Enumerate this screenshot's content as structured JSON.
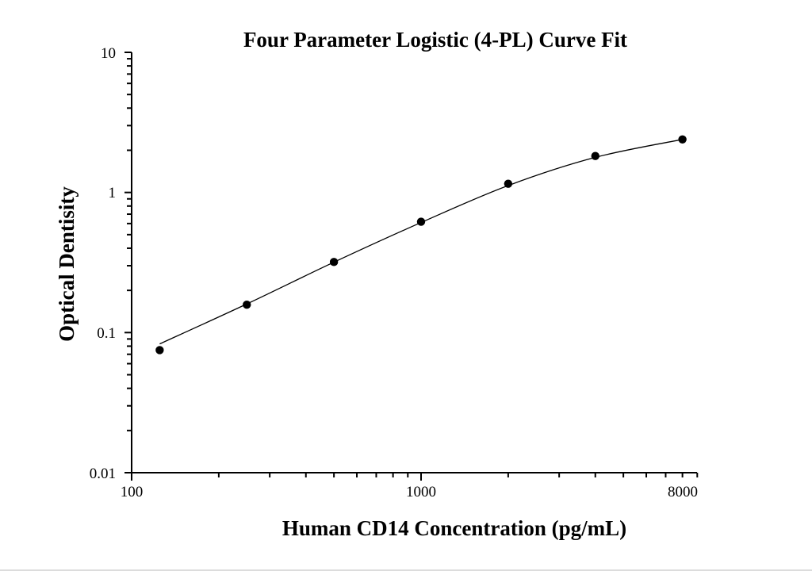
{
  "chart_data": {
    "type": "scatter",
    "title": "Four Parameter Logistic (4-PL) Curve Fit",
    "xlabel": "Human CD14 Concentration (pg/mL)",
    "ylabel": "Optical Dentisity",
    "xscale": "log",
    "yscale": "log",
    "xlim": [
      100,
      9000
    ],
    "ylim": [
      0.01,
      10
    ],
    "x_tick_labels": [
      "100",
      "1000",
      "8000"
    ],
    "y_tick_labels": [
      "10",
      "1",
      "0.1",
      "0.01"
    ],
    "grid": false,
    "legend": null,
    "series": [
      {
        "name": "Standard points",
        "marker": "filled-circle",
        "color": "#000000",
        "x": [
          125,
          250,
          500,
          1000,
          2000,
          4000,
          8000
        ],
        "y": [
          0.075,
          0.158,
          0.319,
          0.618,
          1.154,
          1.82,
          2.39
        ]
      },
      {
        "name": "4-PL fit curve",
        "style": "line",
        "color": "#000000",
        "x": [
          125,
          250,
          500,
          1000,
          2000,
          4000,
          8000
        ],
        "y": [
          0.083,
          0.16,
          0.318,
          0.61,
          1.12,
          1.78,
          2.39
        ]
      }
    ]
  },
  "labels": {
    "title": "Four Parameter Logistic (4-PL) Curve Fit",
    "xlabel": "Human CD14 Concentration (pg/mL)",
    "ylabel": "Optical Dentisity",
    "y_ticks": [
      "10",
      "1",
      "0.1",
      "0.01"
    ],
    "x_ticks": [
      "100",
      "1000",
      "8000"
    ]
  }
}
